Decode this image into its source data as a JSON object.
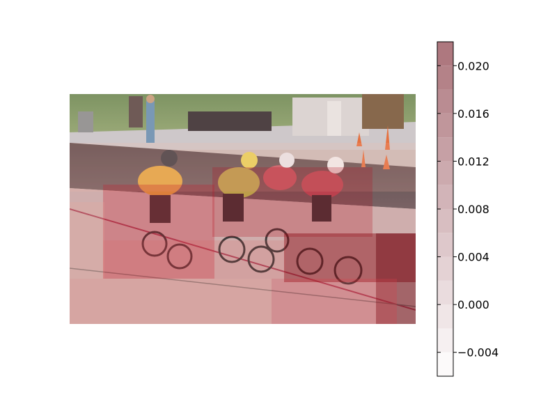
{
  "chart_data": {
    "type": "heatmap",
    "title": "",
    "xlabel": "",
    "ylabel": "",
    "background": "photo-cyclists-on-velodrome-track",
    "colormap": {
      "name": "Reds (discrete, alpha overlay)",
      "range": [
        -0.006,
        0.022
      ],
      "levels": 14,
      "low_color": "#ffffff",
      "high_color": "#67000d"
    },
    "colorbar": {
      "orientation": "vertical",
      "placement": "right",
      "ticks": [
        -0.004,
        0.0,
        0.004,
        0.008,
        0.012,
        0.016,
        0.02
      ],
      "tick_labels": [
        "−0.004",
        "0.000",
        "0.004",
        "0.008",
        "0.012",
        "0.016",
        "0.020"
      ]
    },
    "overlay_regions": [
      {
        "name": "lead-rider-cluster",
        "value": 0.018
      },
      {
        "name": "pack-center",
        "value": 0.015
      },
      {
        "name": "right-foreground-track",
        "value": 0.02
      },
      {
        "name": "lower-track-band",
        "value": 0.01
      },
      {
        "name": "lower-left-track",
        "value": 0.006
      },
      {
        "name": "upper-track",
        "value": 0.003
      },
      {
        "name": "background",
        "value": 0.0
      }
    ]
  }
}
